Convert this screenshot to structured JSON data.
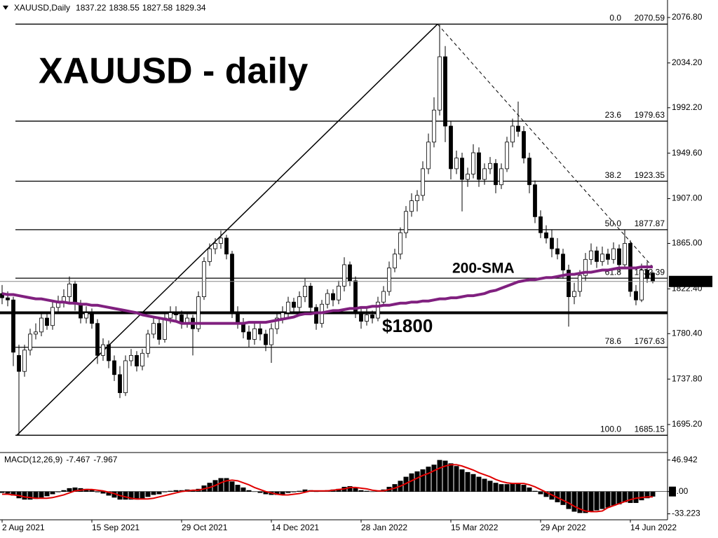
{
  "chart_data": {
    "type": "candlestick",
    "header": "XAUUSD,Daily",
    "title": "XAUUSD - daily",
    "categories": [
      "2 Aug 2021",
      null,
      null,
      null,
      null,
      null,
      null,
      null,
      null,
      null,
      null,
      null,
      null,
      null,
      null,
      null,
      "15 Sep 2021",
      null,
      null,
      null,
      null,
      null,
      null,
      null,
      null,
      null,
      null,
      null,
      null,
      null,
      null,
      null,
      "29 Oct 2021",
      null,
      null,
      null,
      null,
      null,
      null,
      null,
      null,
      null,
      null,
      null,
      null,
      null,
      null,
      null,
      "14 Dec 2021",
      null,
      null,
      null,
      null,
      null,
      null,
      null,
      null,
      null,
      null,
      null,
      null,
      null,
      null,
      null,
      "28 Jan 2022",
      null,
      null,
      null,
      null,
      null,
      null,
      null,
      null,
      null,
      null,
      null,
      null,
      null,
      null,
      null,
      "15 Mar 2022",
      null,
      null,
      null,
      null,
      null,
      null,
      null,
      null,
      null,
      null,
      null,
      null,
      null,
      null,
      null,
      "29 Apr 2022",
      null,
      null,
      null,
      null,
      null,
      null,
      null,
      null,
      null,
      null,
      null,
      null,
      null,
      null,
      null,
      "14 Jun 2022",
      null,
      null,
      null,
      null
    ],
    "candles": [
      [
        1818,
        1826,
        1808,
        1814
      ],
      [
        1814,
        1820,
        1806,
        1812
      ],
      [
        1812,
        1815,
        1750,
        1763
      ],
      [
        1760,
        1770,
        1685,
        1745
      ],
      [
        1745,
        1770,
        1740,
        1765
      ],
      [
        1765,
        1785,
        1760,
        1780
      ],
      [
        1780,
        1790,
        1775,
        1782
      ],
      [
        1782,
        1800,
        1778,
        1795
      ],
      [
        1795,
        1800,
        1784,
        1788
      ],
      [
        1788,
        1810,
        1784,
        1805
      ],
      [
        1805,
        1816,
        1800,
        1810
      ],
      [
        1810,
        1822,
        1805,
        1815
      ],
      [
        1815,
        1834,
        1810,
        1827
      ],
      [
        1827,
        1830,
        1802,
        1808
      ],
      [
        1808,
        1812,
        1790,
        1795
      ],
      [
        1795,
        1806,
        1790,
        1800
      ],
      [
        1800,
        1804,
        1785,
        1790
      ],
      [
        1790,
        1794,
        1752,
        1760
      ],
      [
        1760,
        1776,
        1755,
        1770
      ],
      [
        1770,
        1774,
        1748,
        1755
      ],
      [
        1755,
        1760,
        1736,
        1742
      ],
      [
        1742,
        1750,
        1720,
        1725
      ],
      [
        1725,
        1760,
        1722,
        1755
      ],
      [
        1755,
        1766,
        1750,
        1760
      ],
      [
        1760,
        1764,
        1745,
        1750
      ],
      [
        1750,
        1766,
        1746,
        1762
      ],
      [
        1762,
        1784,
        1758,
        1780
      ],
      [
        1780,
        1795,
        1776,
        1790
      ],
      [
        1790,
        1794,
        1770,
        1775
      ],
      [
        1775,
        1800,
        1772,
        1795
      ],
      [
        1795,
        1806,
        1790,
        1800
      ],
      [
        1800,
        1806,
        1792,
        1798
      ],
      [
        1798,
        1802,
        1785,
        1790
      ],
      [
        1790,
        1800,
        1786,
        1795
      ],
      [
        1795,
        1798,
        1760,
        1785
      ],
      [
        1785,
        1820,
        1782,
        1815
      ],
      [
        1815,
        1852,
        1812,
        1848
      ],
      [
        1848,
        1865,
        1844,
        1860
      ],
      [
        1860,
        1870,
        1855,
        1865
      ],
      [
        1865,
        1877,
        1860,
        1870
      ],
      [
        1870,
        1873,
        1850,
        1855
      ],
      [
        1855,
        1858,
        1795,
        1800
      ],
      [
        1800,
        1806,
        1785,
        1790
      ],
      [
        1790,
        1795,
        1776,
        1782
      ],
      [
        1782,
        1788,
        1768,
        1775
      ],
      [
        1775,
        1790,
        1770,
        1785
      ],
      [
        1785,
        1790,
        1774,
        1780
      ],
      [
        1780,
        1784,
        1764,
        1770
      ],
      [
        1770,
        1790,
        1753,
        1785
      ],
      [
        1785,
        1800,
        1780,
        1795
      ],
      [
        1795,
        1806,
        1790,
        1800
      ],
      [
        1800,
        1815,
        1796,
        1810
      ],
      [
        1810,
        1814,
        1800,
        1805
      ],
      [
        1805,
        1820,
        1800,
        1815
      ],
      [
        1815,
        1832,
        1810,
        1825
      ],
      [
        1825,
        1828,
        1800,
        1805
      ],
      [
        1805,
        1808,
        1784,
        1790
      ],
      [
        1790,
        1812,
        1786,
        1808
      ],
      [
        1808,
        1822,
        1804,
        1818
      ],
      [
        1818,
        1822,
        1806,
        1812
      ],
      [
        1812,
        1830,
        1808,
        1825
      ],
      [
        1825,
        1852,
        1820,
        1845
      ],
      [
        1845,
        1848,
        1825,
        1830
      ],
      [
        1830,
        1834,
        1795,
        1800
      ],
      [
        1800,
        1804,
        1785,
        1792
      ],
      [
        1792,
        1804,
        1788,
        1798
      ],
      [
        1798,
        1802,
        1790,
        1795
      ],
      [
        1795,
        1815,
        1792,
        1810
      ],
      [
        1810,
        1825,
        1806,
        1820
      ],
      [
        1820,
        1848,
        1816,
        1842
      ],
      [
        1842,
        1860,
        1838,
        1855
      ],
      [
        1855,
        1880,
        1850,
        1875
      ],
      [
        1875,
        1900,
        1870,
        1895
      ],
      [
        1895,
        1912,
        1890,
        1905
      ],
      [
        1905,
        1915,
        1895,
        1910
      ],
      [
        1910,
        1942,
        1905,
        1935
      ],
      [
        1935,
        1968,
        1930,
        1960
      ],
      [
        1960,
        2002,
        1955,
        1990
      ],
      [
        1990,
        2070,
        1985,
        2040
      ],
      [
        2040,
        2050,
        1960,
        1975
      ],
      [
        1975,
        1980,
        1925,
        1935
      ],
      [
        1935,
        1952,
        1930,
        1945
      ],
      [
        1945,
        1950,
        1895,
        1925
      ],
      [
        1925,
        1936,
        1918,
        1930
      ],
      [
        1930,
        1958,
        1926,
        1950
      ],
      [
        1950,
        1955,
        1918,
        1925
      ],
      [
        1925,
        1940,
        1920,
        1935
      ],
      [
        1935,
        1946,
        1930,
        1940
      ],
      [
        1940,
        1944,
        1912,
        1920
      ],
      [
        1920,
        1940,
        1916,
        1935
      ],
      [
        1935,
        1965,
        1932,
        1960
      ],
      [
        1960,
        1982,
        1955,
        1975
      ],
      [
        1975,
        1998,
        1965,
        1970
      ],
      [
        1970,
        1975,
        1940,
        1945
      ],
      [
        1945,
        1950,
        1912,
        1920
      ],
      [
        1920,
        1924,
        1884,
        1890
      ],
      [
        1890,
        1896,
        1870,
        1875
      ],
      [
        1875,
        1882,
        1865,
        1870
      ],
      [
        1870,
        1878,
        1852,
        1860
      ],
      [
        1860,
        1870,
        1850,
        1855
      ],
      [
        1855,
        1860,
        1832,
        1840
      ],
      [
        1840,
        1845,
        1787,
        1815
      ],
      [
        1815,
        1828,
        1808,
        1820
      ],
      [
        1820,
        1840,
        1815,
        1835
      ],
      [
        1835,
        1856,
        1830,
        1850
      ],
      [
        1850,
        1865,
        1845,
        1858
      ],
      [
        1858,
        1862,
        1842,
        1848
      ],
      [
        1848,
        1862,
        1844,
        1855
      ],
      [
        1855,
        1860,
        1845,
        1850
      ],
      [
        1850,
        1866,
        1846,
        1860
      ],
      [
        1860,
        1864,
        1838,
        1845
      ],
      [
        1845,
        1878,
        1842,
        1865
      ],
      [
        1865,
        1868,
        1815,
        1820
      ],
      [
        1820,
        1826,
        1807,
        1812
      ],
      [
        1812,
        1846,
        1810,
        1840
      ],
      [
        1840,
        1848,
        1828,
        1832
      ],
      [
        1837.22,
        1838.55,
        1827.58,
        1829.34
      ]
    ],
    "up_color": "#ffffff",
    "down_color": "#000000",
    "ylim": [
      1669.6,
      2093.2
    ],
    "yticks": [
      {
        "value": 2076.8,
        "label": "2076.80"
      },
      {
        "value": 2034.2,
        "label": "2034.20"
      },
      {
        "value": 1992.2,
        "label": "1992.20"
      },
      {
        "value": 1949.6,
        "label": "1949.60"
      },
      {
        "value": 1907,
        "label": "1907.00"
      },
      {
        "value": 1865,
        "label": "1865.00"
      },
      {
        "value": 1822.4,
        "label": "1822.40"
      },
      {
        "value": 1780.4,
        "label": "1780.40"
      },
      {
        "value": 1737.8,
        "label": "1737.80"
      },
      {
        "value": 1695.2,
        "label": "1695.20"
      }
    ],
    "sma": {
      "name": "200-SMA",
      "color": "#80207f",
      "values": [
        1818,
        1817,
        1817,
        1816,
        1815,
        1814,
        1813,
        1813,
        1812,
        1811,
        1810,
        1810,
        1809,
        1809,
        1808,
        1808,
        1807,
        1807,
        1806,
        1805,
        1804,
        1803,
        1802,
        1801,
        1800,
        1798,
        1797,
        1796,
        1795,
        1794,
        1793,
        1792,
        1790,
        1790,
        1790,
        1790,
        1790,
        1790,
        1790,
        1790,
        1790,
        1790,
        1790,
        1790,
        1791,
        1791,
        1791,
        1791,
        1792,
        1793,
        1794,
        1795,
        1796,
        1798,
        1799,
        1799,
        1800,
        1800,
        1801,
        1802,
        1802,
        1803,
        1804,
        1804,
        1805,
        1805,
        1806,
        1806,
        1807,
        1807,
        1808,
        1809,
        1809,
        1810,
        1810,
        1811,
        1811,
        1812,
        1813,
        1813,
        1814,
        1814,
        1815,
        1816,
        1816,
        1817,
        1818,
        1820,
        1821,
        1823,
        1825,
        1827,
        1829,
        1830,
        1831,
        1831,
        1832,
        1833,
        1833,
        1834,
        1835,
        1836,
        1836,
        1837,
        1838,
        1838,
        1839,
        1840,
        1840,
        1841,
        1842,
        1842,
        1842,
        1842,
        1843,
        1843,
        1843
      ]
    },
    "fib": [
      {
        "level": "0.0",
        "price": 2070.59
      },
      {
        "level": "23.6",
        "price": 1979.63
      },
      {
        "level": "38.2",
        "price": 1923.35
      },
      {
        "level": "50.0",
        "price": 1877.87
      },
      {
        "level": "61.8",
        "price": 1832.39
      },
      {
        "level": "78.6",
        "price": 1767.63
      },
      {
        "level": "100.0",
        "price": 1685.15
      }
    ],
    "support": {
      "label": "$1800",
      "value": 1800
    },
    "macd": {
      "name": "MACD(12,26,9)",
      "color": "#000000",
      "signal_color": "#e00000",
      "ylim": [
        -40,
        56
      ],
      "yticks": [
        46.942,
        {
          "value": 0,
          "label": "0.00"
        },
        -33.223
      ],
      "values": [
        -2,
        -3,
        -6,
        -10,
        -12,
        -12,
        -11,
        -9,
        -7,
        -4,
        -1,
        2,
        5,
        6,
        5,
        4,
        3,
        -1,
        -3,
        -6,
        -9,
        -12,
        -12,
        -12,
        -12,
        -11,
        -8,
        -5,
        -4,
        -1,
        1,
        2,
        2,
        3,
        2,
        4,
        9,
        13,
        17,
        20,
        20,
        15,
        10,
        6,
        2,
        0,
        -2,
        -4,
        -5,
        -5,
        -4,
        -2,
        -1,
        1,
        3,
        2,
        0,
        1,
        2,
        3,
        4,
        7,
        8,
        5,
        2,
        1,
        0,
        1,
        3,
        7,
        11,
        16,
        22,
        27,
        30,
        33,
        37,
        40,
        47,
        46,
        42,
        38,
        33,
        29,
        26,
        22,
        19,
        16,
        13,
        11,
        11,
        12,
        12,
        10,
        6,
        1,
        -4,
        -8,
        -12,
        -16,
        -20,
        -26,
        -30,
        -32,
        -32,
        -30,
        -28,
        -26,
        -24,
        -21,
        -19,
        -16,
        -17,
        -17,
        -13,
        -10,
        -7.467
      ],
      "signal": [
        -4,
        -4,
        -5,
        -6,
        -8,
        -9,
        -10,
        -10,
        -10,
        -9,
        -7,
        -5,
        -2,
        1,
        2,
        3,
        3,
        2,
        1,
        -1,
        -3,
        -6,
        -8,
        -10,
        -11,
        -11,
        -11,
        -10,
        -8,
        -6,
        -4,
        -2,
        0,
        1,
        2,
        2,
        4,
        6,
        9,
        13,
        16,
        17,
        16,
        13,
        10,
        6,
        3,
        0,
        -2,
        -4,
        -5,
        -5,
        -4,
        -3,
        -1,
        1,
        1,
        1,
        1,
        2,
        3,
        4,
        6,
        6,
        5,
        4,
        2,
        1,
        1,
        3,
        5,
        8,
        12,
        16,
        20,
        24,
        27,
        31,
        35,
        38,
        40,
        40,
        38,
        35,
        32,
        28,
        25,
        22,
        18,
        15,
        13,
        12,
        12,
        12,
        10,
        7,
        3,
        -1,
        -5,
        -9,
        -13,
        -17,
        -22,
        -26,
        -29,
        -30,
        -30,
        -29,
        -24,
        -21,
        -18,
        -15,
        -12,
        -10,
        -9,
        -8,
        -7.967
      ]
    }
  }
}
